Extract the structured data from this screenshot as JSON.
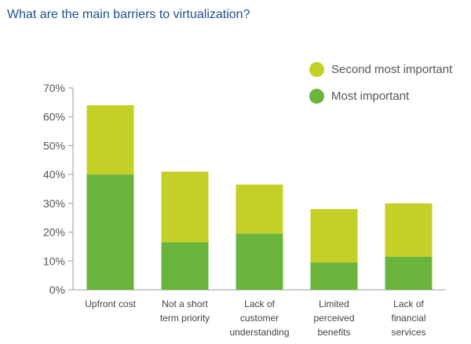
{
  "title": "What are the main barriers to virtualization?",
  "chart_data": {
    "type": "bar",
    "stacked": true,
    "title": "What are the main barriers to virtualization?",
    "categories": [
      [
        "Upfront cost"
      ],
      [
        "Not a short",
        "term priority"
      ],
      [
        "Lack of",
        "customer",
        "understanding"
      ],
      [
        "Limited",
        "perceived",
        "benefits"
      ],
      [
        "Lack of",
        "financial",
        "services"
      ]
    ],
    "series": [
      {
        "name": "Most important",
        "color": "#6ab43e",
        "values": [
          40,
          16.5,
          19.5,
          9.5,
          11.5
        ]
      },
      {
        "name": "Second most important",
        "color": "#c4cf27",
        "values": [
          24,
          24.5,
          17,
          18.5,
          18.5
        ]
      }
    ],
    "ylim": [
      0,
      70
    ],
    "yticks": [
      "0%",
      "10%",
      "20%",
      "30%",
      "40%",
      "50%",
      "60%",
      "70%"
    ],
    "grid": false,
    "legend_position": "top-right"
  },
  "legend": [
    {
      "label": "Second most important",
      "color": "#c4cf27"
    },
    {
      "label": "Most important",
      "color": "#6ab43e"
    }
  ]
}
